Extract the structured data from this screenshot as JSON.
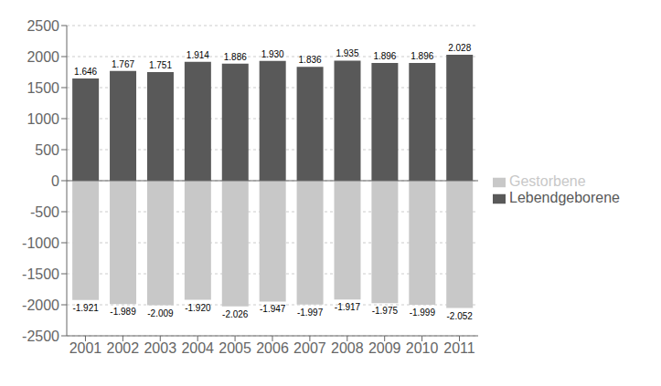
{
  "chart_data": {
    "type": "bar",
    "categories": [
      2001,
      2002,
      2003,
      2004,
      2005,
      2006,
      2007,
      2008,
      2009,
      2010,
      2011
    ],
    "series": [
      {
        "name": "Lebendgeborene",
        "color": "#595959",
        "values": [
          1646,
          1767,
          1751,
          1914,
          1886,
          1930,
          1836,
          1935,
          1896,
          1896,
          2028
        ],
        "value_labels": [
          "1.646",
          "1.767",
          "1.751",
          "1.914",
          "1.886",
          "1.930",
          "1.836",
          "1.935",
          "1.896",
          "1.896",
          "2.028"
        ]
      },
      {
        "name": "Gestorbene",
        "color": "#c8c8c8",
        "values": [
          -1921,
          -1989,
          -2009,
          -1920,
          -2026,
          -1947,
          -1997,
          -1917,
          -1975,
          -1999,
          -2052
        ],
        "value_labels": [
          "-1.921",
          "-1.989",
          "-2.009",
          "-1.920",
          "-2.026",
          "-1.947",
          "-1.997",
          "-1.917",
          "-1.975",
          "-1.999",
          "-2.052"
        ]
      }
    ],
    "ylim": [
      -2500,
      2500
    ],
    "yticks": [
      -2500,
      -2000,
      -1500,
      -1000,
      -500,
      0,
      500,
      1000,
      1500,
      2000,
      2500
    ],
    "grid": true,
    "legend": "right",
    "data_labels": true
  }
}
